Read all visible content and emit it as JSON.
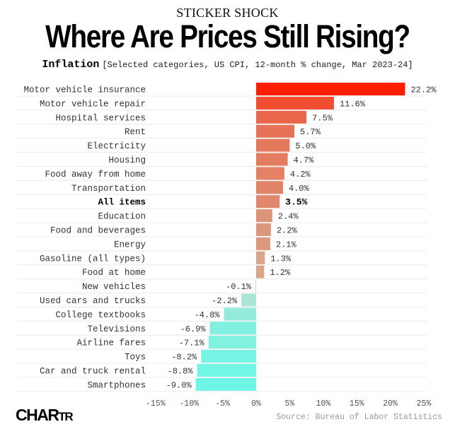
{
  "header": {
    "kicker": "STICKER SHOCK",
    "title": "Where Are Prices Still Rising?",
    "subtitle_bold": "Inflation",
    "subtitle_rest": "[Selected categories, US CPI, 12-month % change, Mar 2023-24]"
  },
  "footer": {
    "logo_big": "CHAR",
    "logo_small": "TR",
    "source": "Source: Bureau of Labor Statistics"
  },
  "chart_data": {
    "type": "bar",
    "orientation": "horizontal",
    "title": "Where Are Prices Still Rising?",
    "subtitle": "Inflation [Selected categories, US CPI, 12-month % change, Mar 2023-24]",
    "xlabel": "",
    "ylabel": "",
    "xlim": [
      -15,
      25
    ],
    "xticks": [
      -15,
      -10,
      -5,
      0,
      5,
      10,
      15,
      20,
      25
    ],
    "xtick_labels": [
      "-15%",
      "-10%",
      "-5%",
      "0%",
      "5%",
      "10%",
      "15%",
      "20%",
      "25%"
    ],
    "grid": true,
    "highlight": "All items",
    "categories": [
      "Motor vehicle insurance",
      "Motor vehicle repair",
      "Hospital services",
      "Rent",
      "Electricity",
      "Housing",
      "Food away from home",
      "Transportation",
      "All items",
      "Education",
      "Food and beverages",
      "Energy",
      "Gasoline (all types)",
      "Food at home",
      "New vehicles",
      "Used cars and trucks",
      "College textbooks",
      "Televisions",
      "Airline fares",
      "Toys",
      "Car and truck rental",
      "Smartphones"
    ],
    "values": [
      22.2,
      11.6,
      7.5,
      5.7,
      5.0,
      4.7,
      4.2,
      4.0,
      3.5,
      2.4,
      2.2,
      2.1,
      1.3,
      1.2,
      -0.1,
      -2.2,
      -4.8,
      -6.9,
      -7.1,
      -8.2,
      -8.8,
      -9.0
    ],
    "value_labels": [
      "22.2%",
      "11.6%",
      "7.5%",
      "5.7%",
      "5.0%",
      "4.7%",
      "4.2%",
      "4.0%",
      "3.5%",
      "2.4%",
      "2.2%",
      "2.1%",
      "1.3%",
      "1.2%",
      "-0.1%",
      "-2.2%",
      "-4.8%",
      "-6.9%",
      "-7.1%",
      "-8.2%",
      "-8.8%",
      "-9.0%"
    ],
    "colors": {
      "max_positive": "#ff1e00",
      "low_positive": "#c9d8bf",
      "low_negative": "#b6e3cf",
      "max_negative": "#6ff5e6",
      "gridline": "#ececec",
      "label": "#333333",
      "tick": "#555555"
    }
  }
}
